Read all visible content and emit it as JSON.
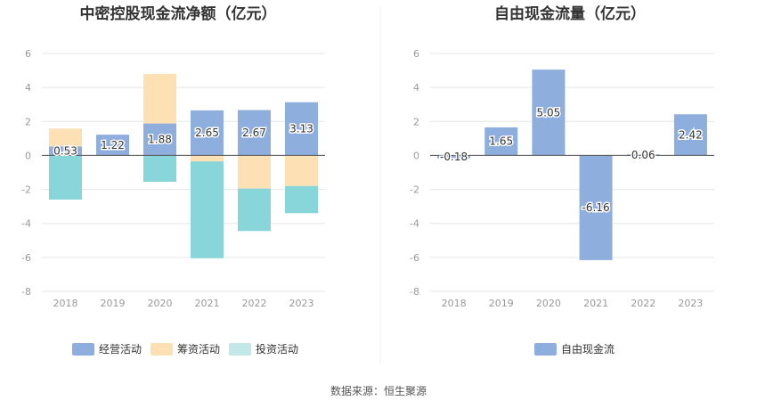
{
  "colors": {
    "operating": "#8eaedd",
    "financing": "#fde0b3",
    "investing": "#88d6d9",
    "investing_legend": "#c3e8e9",
    "free_cash_flow": "#8eaedd",
    "grid": "#e6e6e6",
    "axis": "#555555"
  },
  "source": "数据来源：恒生聚源",
  "chart_data": [
    {
      "type": "bar",
      "stacked": true,
      "title": "中密控股现金流净额（亿元）",
      "categories": [
        "2018",
        "2019",
        "2020",
        "2021",
        "2022",
        "2023"
      ],
      "ylim": [
        -8,
        6
      ],
      "yticks": [
        "6",
        "4",
        "2",
        "0",
        "-2",
        "-4",
        "-6",
        "-8"
      ],
      "grid": true,
      "legend_position": "bottom",
      "series": [
        {
          "name": "经营活动",
          "color_key": "operating",
          "values": [
            0.53,
            1.22,
            1.88,
            2.65,
            2.67,
            3.13
          ],
          "labels": [
            "0.53",
            "1.22",
            "1.88",
            "2.65",
            "2.67",
            "3.13"
          ]
        },
        {
          "name": "筹资活动",
          "color_key": "financing",
          "values": [
            1.05,
            0.0,
            2.92,
            -0.35,
            -1.95,
            -1.8
          ]
        },
        {
          "name": "投资活动",
          "color_key": "investing",
          "values": [
            -2.6,
            0.0,
            -1.55,
            -5.7,
            -2.5,
            -1.6
          ]
        }
      ]
    },
    {
      "type": "bar",
      "title": "自由现金流量（亿元）",
      "categories": [
        "2018",
        "2019",
        "2020",
        "2021",
        "2022",
        "2023"
      ],
      "ylim": [
        -8,
        6
      ],
      "yticks": [
        "6",
        "4",
        "2",
        "0",
        "-2",
        "-4",
        "-6",
        "-8"
      ],
      "grid": true,
      "legend_position": "bottom",
      "series": [
        {
          "name": "自由现金流",
          "color_key": "free_cash_flow",
          "values": [
            -0.18,
            1.65,
            5.05,
            -6.16,
            0.06,
            2.42
          ],
          "labels": [
            "-0.18",
            "1.65",
            "5.05",
            "-6.16",
            "0.06",
            "2.42"
          ]
        }
      ]
    }
  ]
}
